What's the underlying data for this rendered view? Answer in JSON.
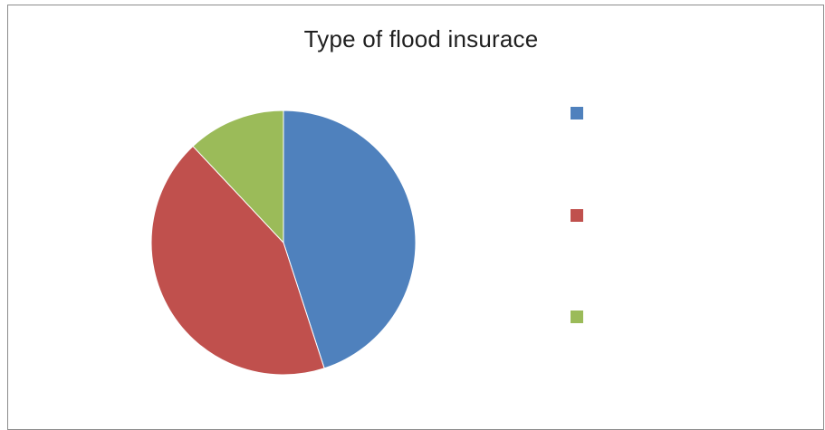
{
  "chart_data": {
    "type": "pie",
    "title": "Type of flood insurace",
    "categories": [
      "",
      "",
      ""
    ],
    "values": [
      45,
      43,
      12
    ],
    "colors": [
      "#4f81bd",
      "#c0504d",
      "#9bbb59"
    ],
    "start_angle_deg": 0,
    "direction": "clockwise",
    "legend_position": "right"
  }
}
